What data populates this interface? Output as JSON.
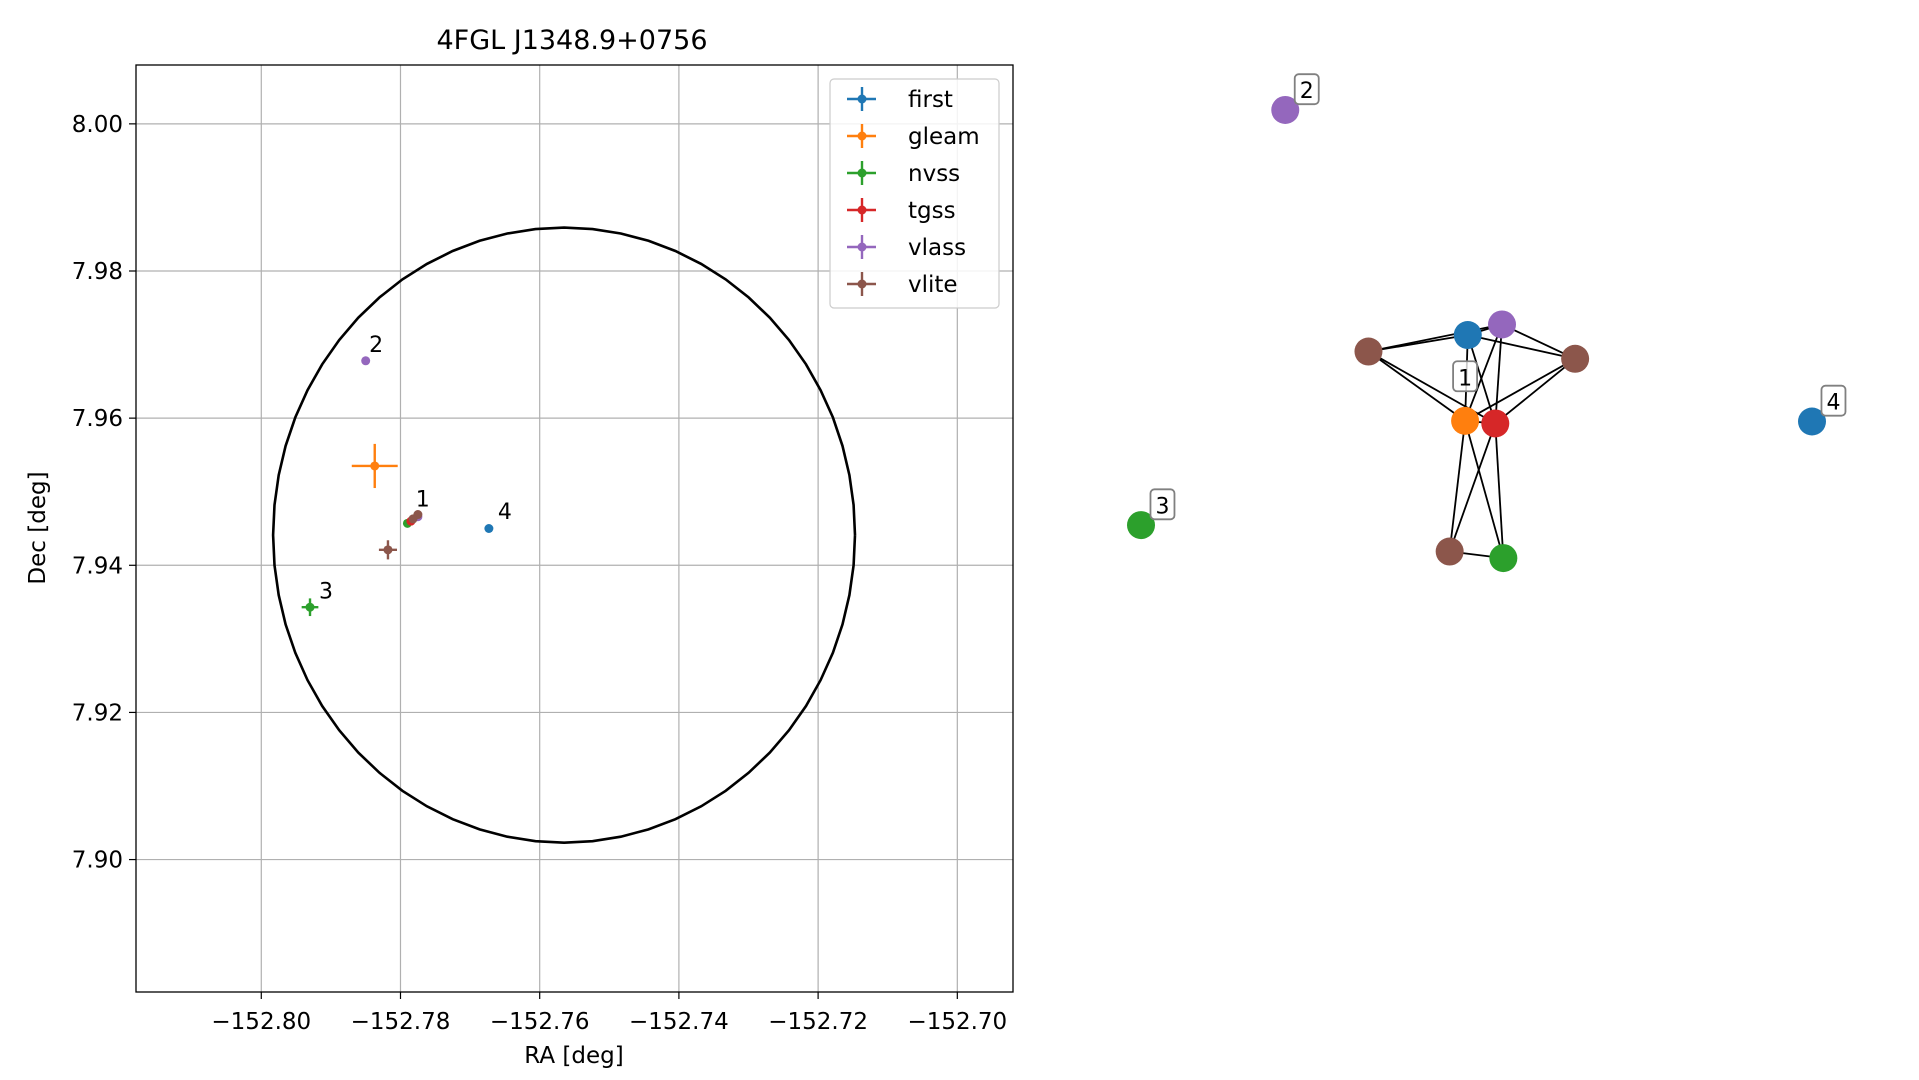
{
  "chart_data": [
    {
      "type": "scatter",
      "title": "4FGL J1348.9+0756",
      "xlabel": "RA [deg]",
      "ylabel": "Dec [deg]",
      "xlim": [
        -152.818,
        -152.692
      ],
      "ylim": [
        7.882,
        8.008
      ],
      "xticks": [
        -152.8,
        -152.78,
        -152.76,
        -152.74,
        -152.72,
        -152.7
      ],
      "xtick_labels": [
        "−152.80",
        "−152.78",
        "−152.76",
        "−152.74",
        "−152.72",
        "−152.70"
      ],
      "yticks": [
        7.9,
        7.92,
        7.94,
        7.96,
        7.98,
        8.0
      ],
      "ytick_labels": [
        "7.90",
        "7.92",
        "7.94",
        "7.96",
        "7.98",
        "8.00"
      ],
      "grid": true,
      "legend_position": "top-right",
      "error_circle": {
        "center": [
          -152.7565,
          7.9441
        ],
        "radius": 0.0418
      },
      "series": [
        {
          "name": "first",
          "color": "#1f77b4",
          "points": [
            {
              "x": -152.7673,
              "y": 7.945,
              "xerr": 0.0002,
              "yerr": 0.0002
            }
          ]
        },
        {
          "name": "gleam",
          "color": "#ff7f0e",
          "points": [
            {
              "x": -152.7837,
              "y": 7.9535,
              "xerr": 0.0033,
              "yerr": 0.003
            }
          ]
        },
        {
          "name": "nvss",
          "color": "#2ca02c",
          "points": [
            {
              "x": -152.793,
              "y": 7.9343,
              "xerr": 0.0012,
              "yerr": 0.0012
            },
            {
              "x": -152.779,
              "y": 7.9457,
              "xerr": 0.0002,
              "yerr": 0.0002
            }
          ]
        },
        {
          "name": "tgss",
          "color": "#d62728",
          "points": [
            {
              "x": -152.7785,
              "y": 7.946,
              "xerr": 0.0004,
              "yerr": 0.0004
            }
          ]
        },
        {
          "name": "vlass",
          "color": "#9467bd",
          "points": [
            {
              "x": -152.785,
              "y": 7.9678,
              "xerr": 0.0001,
              "yerr": 0.0001
            },
            {
              "x": -152.7775,
              "y": 7.9466,
              "xerr": 0.0002,
              "yerr": 0.0002
            }
          ]
        },
        {
          "name": "vlite",
          "color": "#8c564b",
          "points": [
            {
              "x": -152.7818,
              "y": 7.9421,
              "xerr": 0.0013,
              "yerr": 0.0013
            },
            {
              "x": -152.7775,
              "y": 7.9469,
              "xerr": 0.0002,
              "yerr": 0.0002
            },
            {
              "x": -152.7782,
              "y": 7.9463,
              "xerr": 0.0002,
              "yerr": 0.0002
            }
          ]
        }
      ],
      "annotations": [
        {
          "text": "1",
          "x": -152.7778,
          "y": 7.948
        },
        {
          "text": "2",
          "x": -152.7845,
          "y": 7.969
        },
        {
          "text": "3",
          "x": -152.7917,
          "y": 7.9355
        },
        {
          "text": "4",
          "x": -152.766,
          "y": 7.9463
        }
      ]
    },
    {
      "type": "network",
      "nodes": [
        {
          "id": "first_a",
          "series": "first",
          "color": "#1f77b4",
          "x": 0.487,
          "y": 0.656
        },
        {
          "id": "vlass_a",
          "series": "vlass",
          "color": "#9467bd",
          "x": 0.538,
          "y": 0.672
        },
        {
          "id": "vlite_a",
          "series": "vlite",
          "color": "#8c564b",
          "x": 0.339,
          "y": 0.631
        },
        {
          "id": "vlite_b",
          "series": "vlite",
          "color": "#8c564b",
          "x": 0.647,
          "y": 0.62
        },
        {
          "id": "gleam_a",
          "series": "gleam",
          "color": "#ff7f0e",
          "x": 0.483,
          "y": 0.526
        },
        {
          "id": "tgss_a",
          "series": "tgss",
          "color": "#d62728",
          "x": 0.528,
          "y": 0.522
        },
        {
          "id": "vlite_c",
          "series": "vlite",
          "color": "#8c564b",
          "x": 0.46,
          "y": 0.328
        },
        {
          "id": "nvss_a",
          "series": "nvss",
          "color": "#2ca02c",
          "x": 0.54,
          "y": 0.318
        },
        {
          "id": "vlass_b",
          "series": "vlass",
          "color": "#9467bd",
          "x": 0.215,
          "y": 0.997
        },
        {
          "id": "nvss_b",
          "series": "nvss",
          "color": "#2ca02c",
          "x": 0.0,
          "y": 0.368
        },
        {
          "id": "first_b",
          "series": "first",
          "color": "#1f77b4",
          "x": 1.0,
          "y": 0.525
        }
      ],
      "edges": [
        [
          "first_a",
          "vlass_a"
        ],
        [
          "first_a",
          "vlite_a"
        ],
        [
          "first_a",
          "vlite_b"
        ],
        [
          "first_a",
          "gleam_a"
        ],
        [
          "first_a",
          "tgss_a"
        ],
        [
          "vlass_a",
          "vlite_a"
        ],
        [
          "vlass_a",
          "vlite_b"
        ],
        [
          "vlass_a",
          "gleam_a"
        ],
        [
          "vlass_a",
          "tgss_a"
        ],
        [
          "vlite_a",
          "gleam_a"
        ],
        [
          "vlite_a",
          "tgss_a"
        ],
        [
          "vlite_b",
          "gleam_a"
        ],
        [
          "vlite_b",
          "tgss_a"
        ],
        [
          "gleam_a",
          "tgss_a"
        ],
        [
          "gleam_a",
          "vlite_c"
        ],
        [
          "gleam_a",
          "nvss_a"
        ],
        [
          "tgss_a",
          "vlite_c"
        ],
        [
          "tgss_a",
          "nvss_a"
        ],
        [
          "vlite_c",
          "nvss_a"
        ]
      ],
      "labels": [
        {
          "text": "1",
          "node": "tgss_a",
          "dx": -0.045,
          "dy": 0.07
        },
        {
          "text": "2",
          "node": "vlass_b",
          "dx": 0.032,
          "dy": 0.03
        },
        {
          "text": "3",
          "node": "nvss_b",
          "dx": 0.032,
          "dy": 0.03
        },
        {
          "text": "4",
          "node": "first_b",
          "dx": 0.032,
          "dy": 0.03
        }
      ]
    }
  ]
}
